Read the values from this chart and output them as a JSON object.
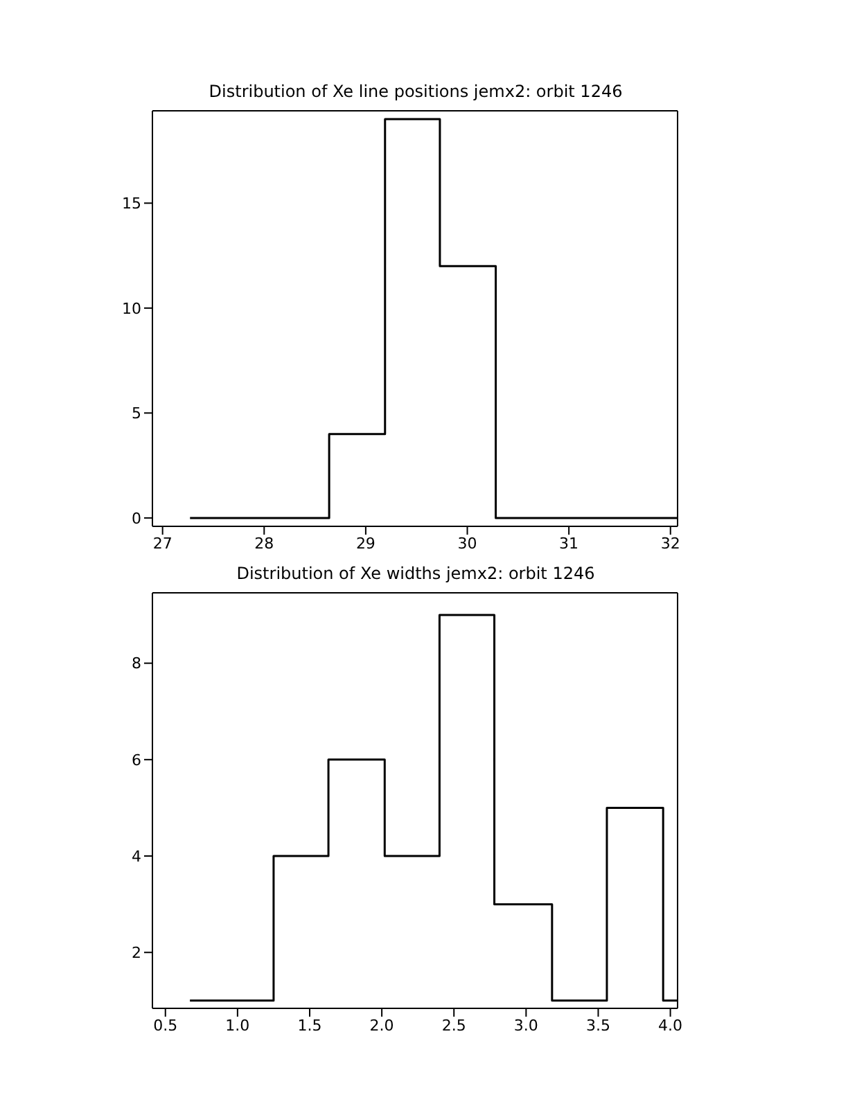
{
  "chart_data": [
    {
      "type": "histogram",
      "title": "Distribution of Xe line positions jemx2: orbit 1246",
      "bins": [
        27.27,
        28.64,
        29.19,
        29.73,
        30.28,
        32.07
      ],
      "values": [
        0,
        4,
        19,
        12,
        0
      ],
      "color": "#000000",
      "xlim": [
        26.9,
        32.07
      ],
      "ylim": [
        -0.4,
        19.4
      ],
      "xticks": [
        27,
        28,
        29,
        30,
        31,
        32
      ],
      "yticks": [
        0,
        5,
        10,
        15
      ]
    },
    {
      "type": "histogram",
      "title": "Distribution of Xe widths jemx2: orbit 1246",
      "bins": [
        0.67,
        1.25,
        1.63,
        2.02,
        2.4,
        2.78,
        3.18,
        3.56,
        3.95,
        4.05
      ],
      "values": [
        1,
        4,
        6,
        4,
        9,
        3,
        1,
        5,
        1
      ],
      "color": "#000000",
      "xlim": [
        0.41,
        4.05
      ],
      "ylim": [
        0.84,
        9.46
      ],
      "xticks": [
        {
          "value": 0.5,
          "label": "0.5"
        },
        {
          "value": 1,
          "label": "1.0"
        },
        {
          "value": 1.5,
          "label": "1.5"
        },
        {
          "value": 2,
          "label": "2.0"
        },
        {
          "value": 2.5,
          "label": "2.5"
        },
        {
          "value": 3,
          "label": "3.0"
        },
        {
          "value": 3.5,
          "label": "3.5"
        },
        {
          "value": 4,
          "label": "4.0"
        }
      ],
      "yticks": [
        2,
        4,
        6,
        8
      ]
    }
  ]
}
